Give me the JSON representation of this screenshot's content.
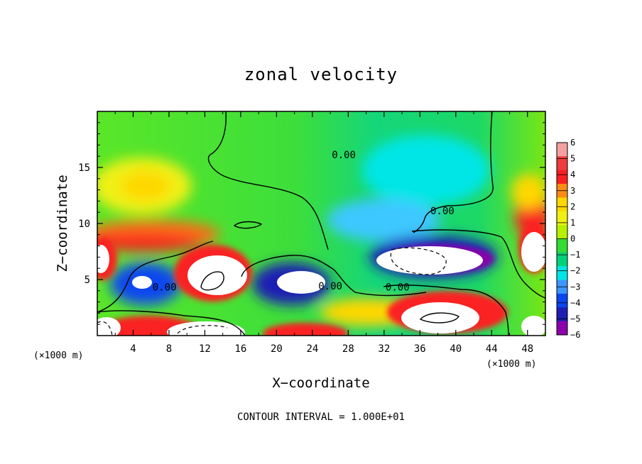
{
  "chart_data": {
    "type": "heatmap",
    "title": "zonal velocity",
    "xlabel": "X−coordinate",
    "ylabel": "Z−coordinate",
    "x_unit_left": "(×1000 m)",
    "x_unit_right": "(×1000 m)",
    "xlim": [
      0,
      50
    ],
    "ylim": [
      0,
      20
    ],
    "xticks": [
      4,
      8,
      12,
      16,
      20,
      24,
      28,
      32,
      36,
      40,
      44,
      48
    ],
    "yticks": [
      5,
      10,
      15
    ],
    "colorbar": {
      "min": -6,
      "max": 6,
      "ticks": [
        "6",
        "5",
        "4",
        "3",
        "2",
        "1",
        "0",
        "−1",
        "−2",
        "−3",
        "−4",
        "−5",
        "−6"
      ],
      "colors": [
        "#f4a0a0",
        "#f03c3c",
        "#fa2020",
        "#fa8c14",
        "#ffd700",
        "#f0f014",
        "#b4f000",
        "#32dc32",
        "#00d278",
        "#00e6e6",
        "#3c96ff",
        "#0a46f0",
        "#1e1eb4",
        "#8c00aa"
      ]
    },
    "contour_labels": [
      {
        "text": "0.00",
        "x": 27.5,
        "z": 16.0
      },
      {
        "text": "0.00",
        "x": 38.5,
        "z": 11.0
      },
      {
        "text": "0.00",
        "x": 7.5,
        "z": 4.2
      },
      {
        "text": "0.00",
        "x": 26.0,
        "z": 4.3
      },
      {
        "text": "0.00",
        "x": 33.5,
        "z": 4.2
      }
    ],
    "annotation": "CONTOUR INTERVAL = 1.000E+01"
  }
}
